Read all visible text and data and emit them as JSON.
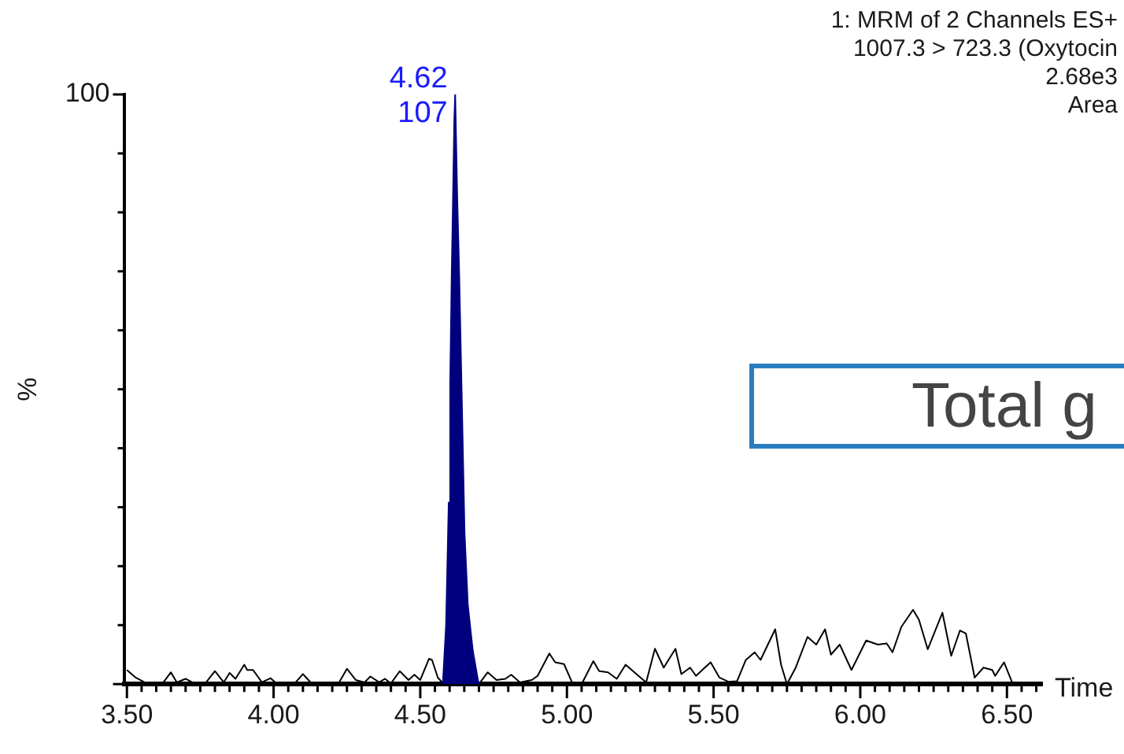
{
  "chart_data": {
    "type": "line",
    "xlabel": "Time",
    "ylabel": "%",
    "annotations": [
      "1: MRM of 2 Channels ES+",
      "1007.3 > 723.3 (Oxytocin",
      "2.68e3",
      "Area",
      {
        "text": "4.62",
        "x": 4.62,
        "y": 100
      },
      {
        "text": "107",
        "x": 4.62,
        "y": 100
      },
      "Total g"
    ],
    "xlim": [
      3.49,
      6.62
    ],
    "xticks": [
      {
        "value": 3.5,
        "label": "3.50"
      },
      {
        "value": 3.55,
        "label": null
      },
      {
        "value": 3.6,
        "label": null
      },
      {
        "value": 3.65,
        "label": null
      },
      {
        "value": 3.7,
        "label": null
      },
      {
        "value": 3.75,
        "label": null
      },
      {
        "value": 3.8,
        "label": null
      },
      {
        "value": 3.85,
        "label": null
      },
      {
        "value": 3.9,
        "label": null
      },
      {
        "value": 3.95,
        "label": null
      },
      {
        "value": 4.0,
        "label": "4.00"
      },
      {
        "value": 4.05,
        "label": null
      },
      {
        "value": 4.1,
        "label": null
      },
      {
        "value": 4.15,
        "label": null
      },
      {
        "value": 4.2,
        "label": null
      },
      {
        "value": 4.25,
        "label": null
      },
      {
        "value": 4.3,
        "label": null
      },
      {
        "value": 4.35,
        "label": null
      },
      {
        "value": 4.4,
        "label": null
      },
      {
        "value": 4.45,
        "label": null
      },
      {
        "value": 4.5,
        "label": "4.50"
      },
      {
        "value": 4.55,
        "label": null
      },
      {
        "value": 4.6,
        "label": null
      },
      {
        "value": 4.65,
        "label": null
      },
      {
        "value": 4.7,
        "label": null
      },
      {
        "value": 4.75,
        "label": null
      },
      {
        "value": 4.8,
        "label": null
      },
      {
        "value": 4.85,
        "label": null
      },
      {
        "value": 4.9,
        "label": null
      },
      {
        "value": 4.95,
        "label": null
      },
      {
        "value": 5.0,
        "label": "5.00"
      },
      {
        "value": 5.05,
        "label": null
      },
      {
        "value": 5.1,
        "label": null
      },
      {
        "value": 5.15,
        "label": null
      },
      {
        "value": 5.2,
        "label": null
      },
      {
        "value": 5.25,
        "label": null
      },
      {
        "value": 5.3,
        "label": null
      },
      {
        "value": 5.35,
        "label": null
      },
      {
        "value": 5.4,
        "label": null
      },
      {
        "value": 5.45,
        "label": null
      },
      {
        "value": 5.5,
        "label": "5.50"
      },
      {
        "value": 5.55,
        "label": null
      },
      {
        "value": 5.6,
        "label": null
      },
      {
        "value": 5.65,
        "label": null
      },
      {
        "value": 5.7,
        "label": null
      },
      {
        "value": 5.75,
        "label": null
      },
      {
        "value": 5.8,
        "label": null
      },
      {
        "value": 5.85,
        "label": null
      },
      {
        "value": 5.9,
        "label": null
      },
      {
        "value": 5.95,
        "label": null
      },
      {
        "value": 6.0,
        "label": "6.00"
      },
      {
        "value": 6.05,
        "label": null
      },
      {
        "value": 6.1,
        "label": null
      },
      {
        "value": 6.15,
        "label": null
      },
      {
        "value": 6.2,
        "label": null
      },
      {
        "value": 6.25,
        "label": null
      },
      {
        "value": 6.3,
        "label": null
      },
      {
        "value": 6.35,
        "label": null
      },
      {
        "value": 6.4,
        "label": null
      },
      {
        "value": 6.45,
        "label": null
      },
      {
        "value": 6.5,
        "label": "6.50"
      },
      {
        "value": 6.55,
        "label": null
      },
      {
        "value": 6.6,
        "label": null
      }
    ],
    "ylim": [
      0,
      100
    ],
    "yticks": [
      0,
      {
        "value": 10,
        "label": null
      },
      {
        "value": 20,
        "label": null
      },
      {
        "value": 30,
        "label": null
      },
      {
        "value": 40,
        "label": null
      },
      {
        "value": 50,
        "label": null
      },
      {
        "value": 60,
        "label": null
      },
      {
        "value": 70,
        "label": null
      },
      {
        "value": 80,
        "label": null
      },
      {
        "value": 90,
        "label": null
      },
      100
    ],
    "series": [
      {
        "type": "line",
        "color": "#000000",
        "x": [
          3.5,
          3.53,
          3.56,
          3.62,
          3.65,
          3.67,
          3.7,
          3.73,
          3.77,
          3.8,
          3.83,
          3.85,
          3.87,
          3.9,
          3.91,
          3.93,
          3.96,
          3.99,
          4.01,
          4.07,
          4.1,
          4.13,
          4.22,
          4.25,
          4.28,
          4.31,
          4.33,
          4.36,
          4.38,
          4.4,
          4.43,
          4.46,
          4.48,
          4.5,
          4.53,
          4.54,
          4.56,
          4.58,
          4.7,
          4.73,
          4.76,
          4.79,
          4.81,
          4.84,
          4.88,
          4.9,
          4.94,
          4.96,
          4.99,
          5.02,
          5.05,
          5.09,
          5.11,
          5.14,
          5.17,
          5.2,
          5.23,
          5.27,
          5.3,
          5.33,
          5.37,
          5.39,
          5.42,
          5.44,
          5.47,
          5.49,
          5.52,
          5.55,
          5.58,
          5.61,
          5.64,
          5.66,
          5.71,
          5.73,
          5.75,
          5.78,
          5.82,
          5.85,
          5.88,
          5.9,
          5.93,
          5.97,
          6.02,
          6.06,
          6.09,
          6.11,
          6.14,
          6.18,
          6.2,
          6.23,
          6.25,
          6.28,
          6.31,
          6.34,
          6.36,
          6.39,
          6.42,
          6.45,
          6.46,
          6.49,
          6.52
        ],
        "values": [
          2.4,
          1.1,
          0.3,
          0,
          2,
          0.3,
          0.9,
          0.1,
          0.3,
          2.2,
          0.3,
          1.9,
          0.9,
          3.3,
          2.4,
          2.4,
          0.3,
          1,
          0.1,
          0,
          1.7,
          0.1,
          0,
          2.6,
          0.7,
          0.3,
          1.3,
          0.3,
          0.9,
          0.1,
          2.2,
          0.7,
          1.6,
          0.7,
          4.3,
          4.1,
          1.1,
          0,
          0,
          2,
          0.7,
          0.9,
          1.6,
          0.3,
          0.7,
          1.4,
          5.2,
          3.7,
          3.4,
          0,
          0,
          3.9,
          2.2,
          2,
          0.9,
          3.3,
          2,
          0.3,
          6,
          2.8,
          6,
          1.7,
          2.8,
          1.4,
          2.8,
          3.7,
          1.1,
          0.4,
          0.5,
          4.1,
          5.4,
          4.1,
          9.3,
          3.3,
          0,
          2.8,
          8,
          6.7,
          9.3,
          5,
          6.7,
          2.4,
          7.4,
          6.7,
          6.9,
          5.4,
          9.7,
          12.6,
          10.9,
          5.9,
          8.4,
          12.1,
          4.8,
          9.1,
          8.6,
          1.1,
          2.8,
          2.4,
          1.4,
          3.7,
          0
        ]
      },
      {
        "type": "area",
        "color": "#00007f",
        "x": [
          4.577,
          4.588,
          4.597,
          4.602,
          4.607,
          4.612,
          4.616,
          4.619,
          4.626,
          4.633,
          4.641,
          4.651,
          4.662,
          4.679,
          4.699
        ],
        "values": [
          0,
          10,
          30.8,
          50.8,
          68.9,
          83.4,
          95.5,
          100,
          82.6,
          68.9,
          49.7,
          25.6,
          13.5,
          5.7,
          0
        ]
      }
    ]
  }
}
